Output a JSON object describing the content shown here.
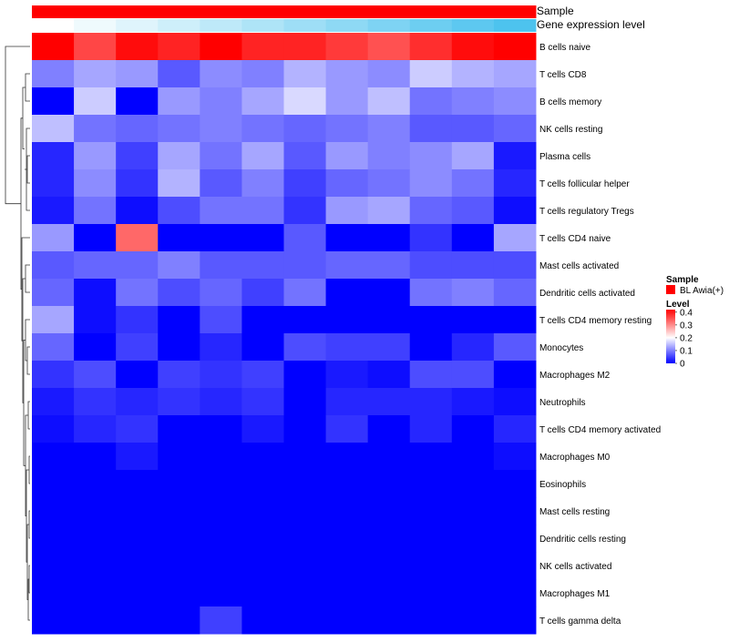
{
  "chart_data": {
    "type": "heatmap",
    "title": "",
    "annotation_tracks": [
      {
        "name": "Sample",
        "values": [
          "BL Awia(+)",
          "BL Awia(+)",
          "BL Awia(+)",
          "BL Awia(+)",
          "BL Awia(+)",
          "BL Awia(+)",
          "BL Awia(+)",
          "BL Awia(+)",
          "BL Awia(+)",
          "BL Awia(+)",
          "BL Awia(+)",
          "BL Awia(+)"
        ]
      },
      {
        "name": "Gene expression level",
        "values": [
          1,
          2,
          3,
          4,
          5,
          6,
          7,
          8,
          9,
          10,
          11,
          12
        ]
      }
    ],
    "rows": [
      "B cells naive",
      "T cells CD8",
      "B cells memory",
      "NK cells resting",
      "Plasma cells",
      "T cells follicular helper",
      "T cells regulatory  Tregs",
      "T cells CD4 naive",
      "Mast cells activated",
      "Dendritic cells activated",
      "T cells CD4 memory resting",
      "Monocytes",
      "Macrophages M2",
      "Neutrophils",
      "T cells CD4 memory activated",
      "Macrophages M0",
      "Eosinophils",
      "Mast cells resting",
      "Dendritic cells resting",
      "NK cells activated",
      "Macrophages M1",
      "T cells gamma delta"
    ],
    "n_columns": 12,
    "values": [
      [
        0.42,
        0.36,
        0.41,
        0.39,
        0.43,
        0.39,
        0.39,
        0.37,
        0.35,
        0.38,
        0.41,
        0.42
      ],
      [
        0.1,
        0.13,
        0.12,
        0.07,
        0.11,
        0.1,
        0.14,
        0.12,
        0.11,
        0.16,
        0.14,
        0.13
      ],
      [
        0.0,
        0.16,
        0.0,
        0.12,
        0.1,
        0.13,
        0.17,
        0.12,
        0.15,
        0.09,
        0.1,
        0.11
      ],
      [
        0.15,
        0.09,
        0.08,
        0.09,
        0.1,
        0.09,
        0.08,
        0.09,
        0.1,
        0.07,
        0.07,
        0.08
      ],
      [
        0.03,
        0.12,
        0.05,
        0.13,
        0.09,
        0.13,
        0.07,
        0.12,
        0.1,
        0.11,
        0.13,
        0.02
      ],
      [
        0.03,
        0.11,
        0.04,
        0.14,
        0.07,
        0.1,
        0.05,
        0.08,
        0.09,
        0.11,
        0.09,
        0.03
      ],
      [
        0.02,
        0.09,
        0.01,
        0.06,
        0.09,
        0.09,
        0.04,
        0.12,
        0.13,
        0.08,
        0.07,
        0.01
      ],
      [
        0.12,
        0.0,
        0.33,
        0.0,
        0.0,
        0.0,
        0.07,
        0.0,
        0.0,
        0.04,
        0.0,
        0.13
      ],
      [
        0.07,
        0.08,
        0.08,
        0.1,
        0.07,
        0.07,
        0.07,
        0.08,
        0.08,
        0.06,
        0.06,
        0.06
      ],
      [
        0.08,
        0.01,
        0.09,
        0.06,
        0.08,
        0.05,
        0.09,
        0.0,
        0.0,
        0.09,
        0.1,
        0.08
      ],
      [
        0.13,
        0.01,
        0.04,
        0.0,
        0.06,
        0.0,
        0.0,
        0.0,
        0.0,
        0.0,
        0.0,
        0.0
      ],
      [
        0.08,
        0.0,
        0.05,
        0.0,
        0.03,
        0.0,
        0.06,
        0.05,
        0.05,
        0.0,
        0.03,
        0.07
      ],
      [
        0.04,
        0.06,
        0.0,
        0.05,
        0.04,
        0.05,
        0.0,
        0.02,
        0.01,
        0.06,
        0.06,
        0.0
      ],
      [
        0.02,
        0.04,
        0.03,
        0.04,
        0.03,
        0.04,
        0.0,
        0.03,
        0.03,
        0.03,
        0.02,
        0.01
      ],
      [
        0.01,
        0.03,
        0.04,
        0.0,
        0.0,
        0.02,
        0.0,
        0.04,
        0.0,
        0.03,
        0.0,
        0.03
      ],
      [
        0.0,
        0.0,
        0.02,
        0.0,
        0.0,
        0.0,
        0.0,
        0.0,
        0.0,
        0.0,
        0.0,
        0.01
      ],
      [
        0.0,
        0.0,
        0.0,
        0.0,
        0.0,
        0.0,
        0.0,
        0.0,
        0.0,
        0.0,
        0.0,
        0.0
      ],
      [
        0.0,
        0.0,
        0.0,
        0.0,
        0.0,
        0.0,
        0.0,
        0.0,
        0.0,
        0.0,
        0.0,
        0.0
      ],
      [
        0.0,
        0.0,
        0.0,
        0.0,
        0.0,
        0.0,
        0.0,
        0.0,
        0.0,
        0.0,
        0.0,
        0.0
      ],
      [
        0.0,
        0.0,
        0.0,
        0.0,
        0.0,
        0.0,
        0.0,
        0.0,
        0.0,
        0.0,
        0.0,
        0.0
      ],
      [
        0.0,
        0.0,
        0.0,
        0.0,
        0.0,
        0.0,
        0.0,
        0.0,
        0.0,
        0.0,
        0.0,
        0.0
      ],
      [
        0.0,
        0.0,
        0.0,
        0.0,
        0.05,
        0.0,
        0.0,
        0.0,
        0.0,
        0.0,
        0.0,
        0.0
      ]
    ],
    "color_scale": {
      "min": 0,
      "max": 0.42,
      "stops": [
        {
          "value": 0,
          "color": "#0000FF"
        },
        {
          "value": 0.2,
          "color": "#FFFFFF"
        },
        {
          "value": 0.42,
          "color": "#FF0000"
        }
      ]
    },
    "legend": {
      "sample_title": "Sample",
      "sample_items": [
        {
          "label": "BL Awia(+)",
          "color": "#FF0000"
        }
      ],
      "level_title": "Level",
      "level_ticks": [
        "0.4",
        "0.3",
        "0.2",
        "0.1",
        "0"
      ],
      "level_tick_values": [
        0.4,
        0.3,
        0.2,
        0.1,
        0
      ],
      "placement": "right"
    },
    "gene_expression_colors": {
      "low": "#FFFFFF",
      "high": "#4DC3EE"
    },
    "row_dendrogram": "left"
  }
}
